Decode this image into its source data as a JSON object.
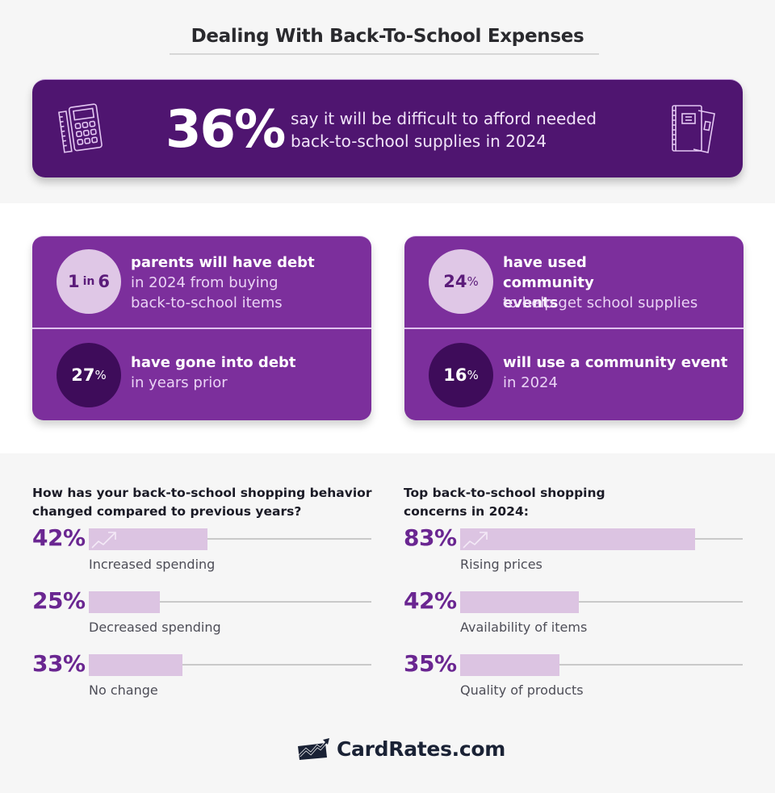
{
  "title": "Dealing With Back-To-School Expenses",
  "hero": {
    "value": "36%",
    "text": "say it will be difficult to afford needed back-to-school supplies in 2024",
    "left_icon": "calculator-ruler-icon",
    "right_icon": "notebook-icon"
  },
  "cards": [
    {
      "stats": [
        {
          "value_main": "1",
          "value_mid": "in",
          "value_end": "6",
          "bold": "parents will have debt",
          "normal": "in 2024 from buying back-to-school items"
        },
        {
          "value_main": "27",
          "value_end": "%",
          "bold": "have gone into debt",
          "normal": "in years prior"
        }
      ]
    },
    {
      "stats": [
        {
          "value_main": "24",
          "value_end": "%",
          "bold": "have used community events",
          "normal": "to help get school supplies"
        },
        {
          "value_main": "16",
          "value_end": "%",
          "bold": "will use a community event",
          "normal": "in 2024"
        }
      ]
    }
  ],
  "chart_data": [
    {
      "type": "bar",
      "orientation": "horizontal",
      "title": "How has your back-to-school shopping behavior changed compared to previous years?",
      "categories": [
        "Increased spending",
        "Decreased spending",
        "No change"
      ],
      "values": [
        42,
        25,
        33
      ],
      "value_labels": [
        "42%",
        "25%",
        "33%"
      ],
      "xlim": [
        0,
        100
      ],
      "unit": "%",
      "grid": false,
      "legend": null,
      "annotations": [
        "trend-up-arrow-icon on first bar"
      ]
    },
    {
      "type": "bar",
      "orientation": "horizontal",
      "title": "Top back-to-school shopping concerns in 2024:",
      "categories": [
        "Rising prices",
        "Availability of items",
        "Quality of products"
      ],
      "values": [
        83,
        42,
        35
      ],
      "value_labels": [
        "83%",
        "42%",
        "35%"
      ],
      "xlim": [
        0,
        100
      ],
      "unit": "%",
      "grid": false,
      "legend": null,
      "annotations": [
        "trend-up-arrow-icon on first bar"
      ]
    }
  ],
  "logo": {
    "text": "CardRates.com",
    "icon": "card-chart-logo-icon"
  },
  "colors": {
    "hero_bg": "#4f1570",
    "card_bg": "#7c2f9c",
    "circle_light": "#dfc7e6",
    "circle_dark": "#3e0c5a",
    "bar_fill": "#dcc4e2",
    "value_text": "#6a2691"
  }
}
